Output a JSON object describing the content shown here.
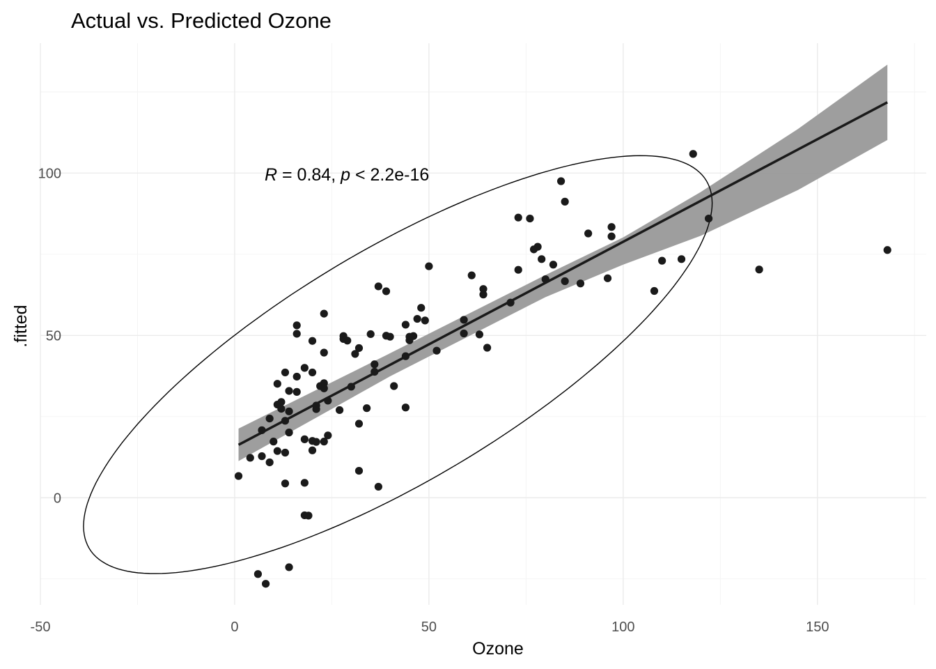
{
  "chart_data": {
    "type": "scatter",
    "title": "Actual vs. Predicted Ozone",
    "xlabel": "Ozone",
    "ylabel": ".fitted",
    "xlim": [
      -50,
      178
    ],
    "ylim": [
      -33,
      140
    ],
    "x_ticks": [
      -50,
      0,
      50,
      100,
      150
    ],
    "y_ticks": [
      0,
      50,
      100
    ],
    "x_tick_labels": [
      "-50",
      "0",
      "50",
      "100",
      "150"
    ],
    "y_tick_labels": [
      "0",
      "50",
      "100"
    ],
    "grid": true,
    "annotation": {
      "r_symbol": "R",
      "r_text": " = 0.84, ",
      "p_symbol": "p",
      "p_text": " < 2.2e-16",
      "x": 1,
      "y": 100
    },
    "points_color": "#1a1a1a",
    "points": [
      [
        1,
        6.7
      ],
      [
        4,
        12.3
      ],
      [
        6,
        -23.5
      ],
      [
        7,
        12.8
      ],
      [
        7,
        20.8
      ],
      [
        8,
        -26.5
      ],
      [
        9,
        10.9
      ],
      [
        9,
        24.4
      ],
      [
        10,
        17.3
      ],
      [
        11,
        14.4
      ],
      [
        11,
        28.7
      ],
      [
        11,
        35.1
      ],
      [
        12,
        29.5
      ],
      [
        12,
        27.4
      ],
      [
        13,
        38.6
      ],
      [
        13,
        23.7
      ],
      [
        13,
        4.4
      ],
      [
        13,
        13.9
      ],
      [
        14,
        32.9
      ],
      [
        14,
        20.1
      ],
      [
        14,
        26.6
      ],
      [
        14,
        -21.4
      ],
      [
        16,
        53.1
      ],
      [
        16,
        50.5
      ],
      [
        16,
        37.3
      ],
      [
        16,
        32.6
      ],
      [
        18,
        40
      ],
      [
        18,
        18
      ],
      [
        18,
        4.6
      ],
      [
        18,
        -5.4
      ],
      [
        19,
        -5.5
      ],
      [
        20,
        48.3
      ],
      [
        20,
        38.6
      ],
      [
        20,
        14.6
      ],
      [
        20,
        17.5
      ],
      [
        21,
        27.3
      ],
      [
        21,
        28.4
      ],
      [
        21,
        17.2
      ],
      [
        22,
        34.4
      ],
      [
        23,
        35.3
      ],
      [
        23,
        33.7
      ],
      [
        23,
        17.3
      ],
      [
        23,
        44.7
      ],
      [
        23,
        56.7
      ],
      [
        24,
        19.2
      ],
      [
        24,
        29.9
      ],
      [
        27,
        27
      ],
      [
        28,
        49.8
      ],
      [
        28,
        48.9
      ],
      [
        29,
        48.4
      ],
      [
        30,
        34.2
      ],
      [
        31,
        44.3
      ],
      [
        32,
        46.1
      ],
      [
        32,
        22.8
      ],
      [
        32,
        8.3
      ],
      [
        34,
        27.6
      ],
      [
        35,
        50.4
      ],
      [
        36,
        41.1
      ],
      [
        36,
        38.8
      ],
      [
        37,
        65.1
      ],
      [
        37,
        3.4
      ],
      [
        39,
        63.6
      ],
      [
        39,
        49.9
      ],
      [
        40,
        49.6
      ],
      [
        41,
        34.4
      ],
      [
        44,
        53.3
      ],
      [
        44,
        43.6
      ],
      [
        44,
        27.8
      ],
      [
        45,
        49.6
      ],
      [
        45,
        48.5
      ],
      [
        46,
        49.8
      ],
      [
        47,
        55.1
      ],
      [
        48,
        58.5
      ],
      [
        49,
        54.6
      ],
      [
        50,
        71.3
      ],
      [
        52,
        45.3
      ],
      [
        59,
        54.8
      ],
      [
        59,
        50.6
      ],
      [
        61,
        68.5
      ],
      [
        63,
        50.3
      ],
      [
        64,
        64.3
      ],
      [
        64,
        62.6
      ],
      [
        65,
        46.2
      ],
      [
        71,
        60.1
      ],
      [
        73,
        86.3
      ],
      [
        73,
        70.2
      ],
      [
        76,
        86
      ],
      [
        77,
        76.5
      ],
      [
        78,
        77.3
      ],
      [
        79,
        73.5
      ],
      [
        80,
        67.3
      ],
      [
        82,
        71.8
      ],
      [
        84,
        97.5
      ],
      [
        85,
        91.2
      ],
      [
        85,
        66.7
      ],
      [
        89,
        66
      ],
      [
        91,
        81.4
      ],
      [
        96,
        67.6
      ],
      [
        97,
        83.4
      ],
      [
        97,
        80.5
      ],
      [
        108,
        63.7
      ],
      [
        110,
        73
      ],
      [
        115,
        73.5
      ],
      [
        118,
        105.9
      ],
      [
        122,
        86
      ],
      [
        135,
        70.3
      ],
      [
        168,
        76.3
      ]
    ],
    "regression_line": {
      "x": [
        1,
        168
      ],
      "y": [
        16.3,
        121.8
      ]
    },
    "confidence_band": {
      "x": [
        1,
        40,
        80,
        100,
        120,
        145,
        168
      ],
      "lower": [
        11.3,
        37.4,
        61.8,
        71.8,
        80.7,
        94.8,
        110.2
      ],
      "upper": [
        21.3,
        44.5,
        68.6,
        80.2,
        94.2,
        113.6,
        133.4
      ]
    },
    "ellipse": {
      "center": [
        42,
        41
      ],
      "semi_axis_major": 97.7,
      "semi_axis_minor": 33.8,
      "angle_deg": 36.7
    }
  }
}
